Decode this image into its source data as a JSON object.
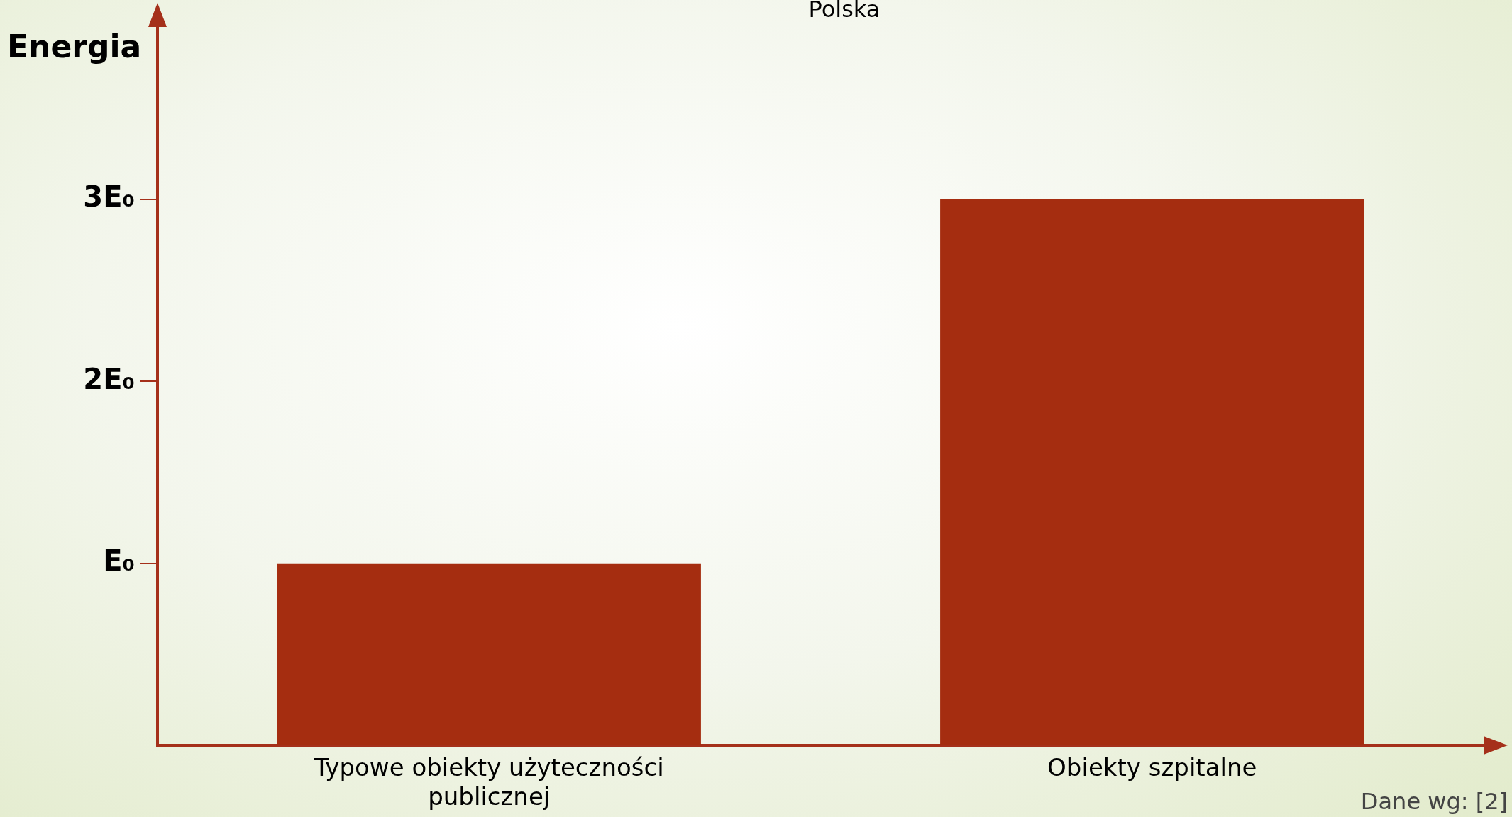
{
  "chart_data": {
    "type": "bar",
    "title": "Polska",
    "ylabel": "Energia",
    "categories": [
      "Typowe obiekty użyteczności publicznej",
      "Obiekty szpitalne"
    ],
    "values": [
      1,
      3
    ],
    "color": "#a52d10",
    "ylim": [
      0,
      3.94
    ],
    "yticks": [
      {
        "value": 1,
        "label": "E₀"
      },
      {
        "value": 2,
        "label": "2E₀"
      },
      {
        "value": 3,
        "label": "3E₀"
      }
    ],
    "grid": false,
    "legend": false,
    "annotations": [
      "Dane wg: [2]"
    ]
  }
}
